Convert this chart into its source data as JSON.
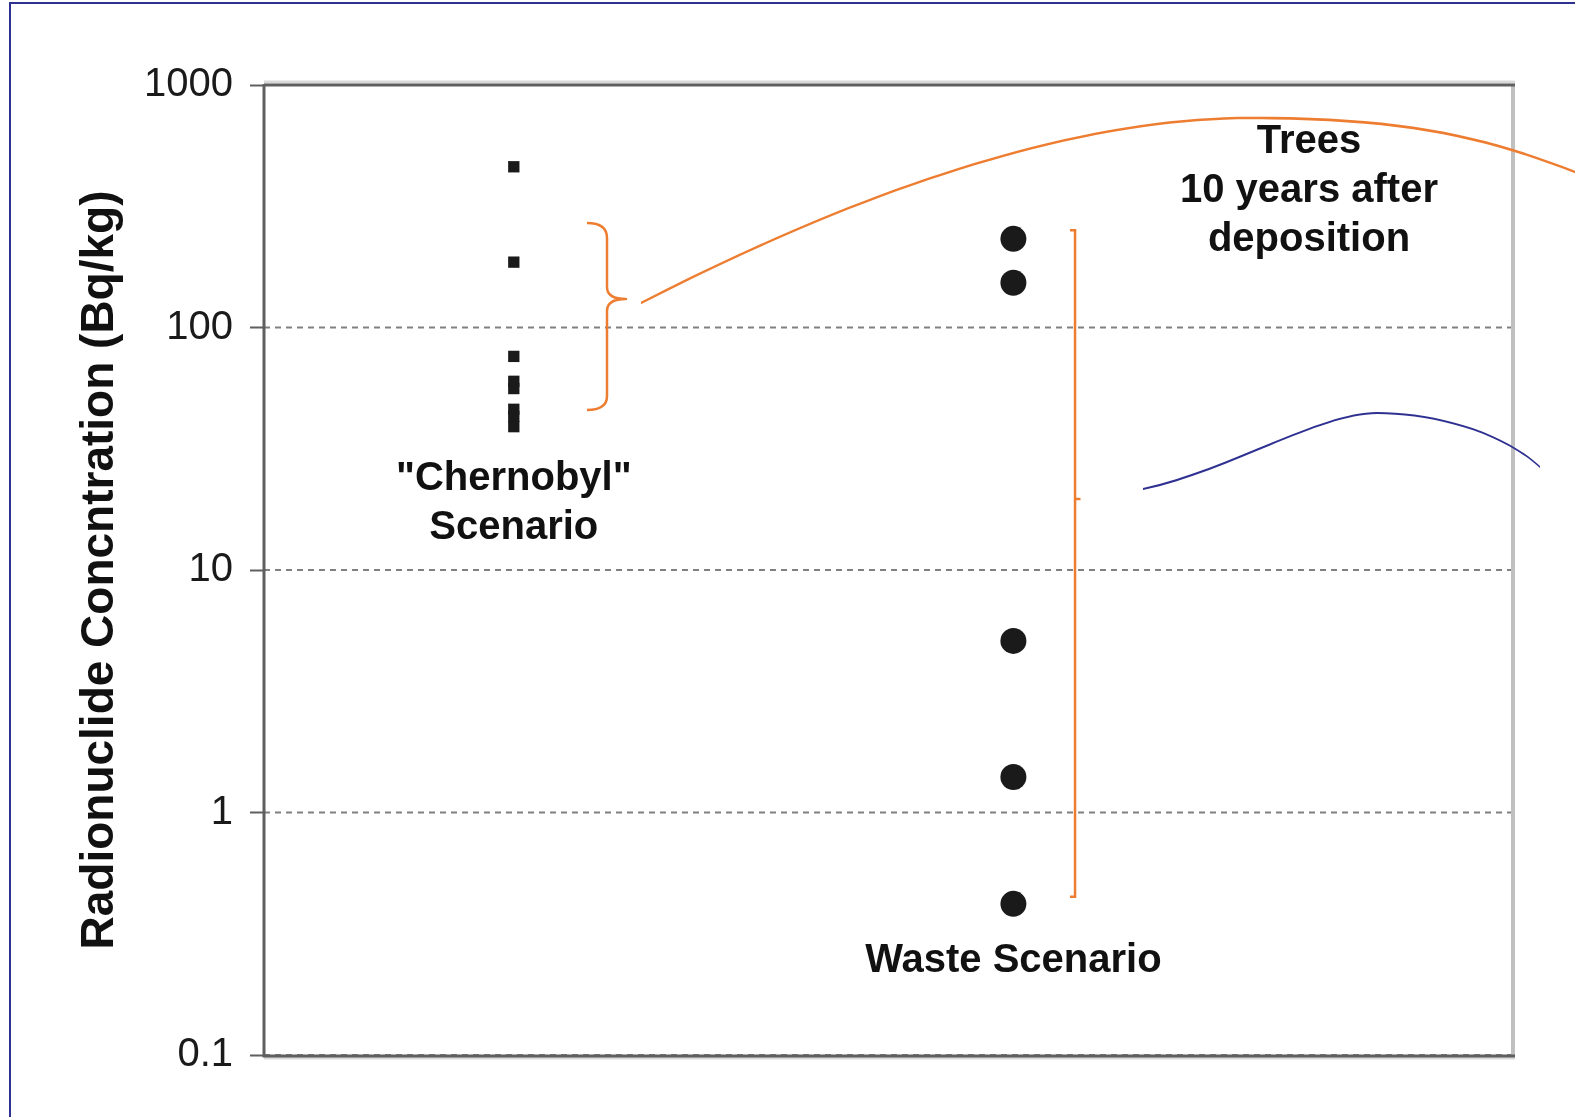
{
  "chart_data": {
    "type": "scatter",
    "title": "Trees\n10 years after\ndeposition",
    "ylabel": "Radionuclide Concntration (Bq/kg)",
    "categories": [
      "\"Chernobyl\"\nScenario",
      "Waste Scenario"
    ],
    "series": [
      {
        "type": "scatter",
        "marker": "square",
        "color": "#1a1a1a",
        "x": [
          "\"Chernobyl\"\nScenario",
          "\"Chernobyl\"\nScenario",
          "\"Chernobyl\"\nScenario",
          "\"Chernobyl\"\nScenario",
          "\"Chernobyl\"\nScenario",
          "\"Chernobyl\"\nScenario",
          "\"Chernobyl\"\nScenario",
          "\"Chernobyl\"\nScenario"
        ],
        "values": [
          460,
          186,
          76,
          60,
          56,
          46,
          43,
          39
        ]
      },
      {
        "type": "scatter",
        "marker": "circle",
        "color": "#1a1a1a",
        "x": [
          "Waste Scenario",
          "Waste Scenario",
          "Waste Scenario",
          "Waste Scenario",
          "Waste Scenario"
        ],
        "values": [
          232,
          153,
          5.1,
          1.4,
          0.42
        ]
      }
    ],
    "ylim": [
      0.1,
      1000
    ],
    "yticks": [
      0.1,
      1,
      10,
      100,
      1000
    ],
    "log": "y",
    "grid": "y"
  }
}
